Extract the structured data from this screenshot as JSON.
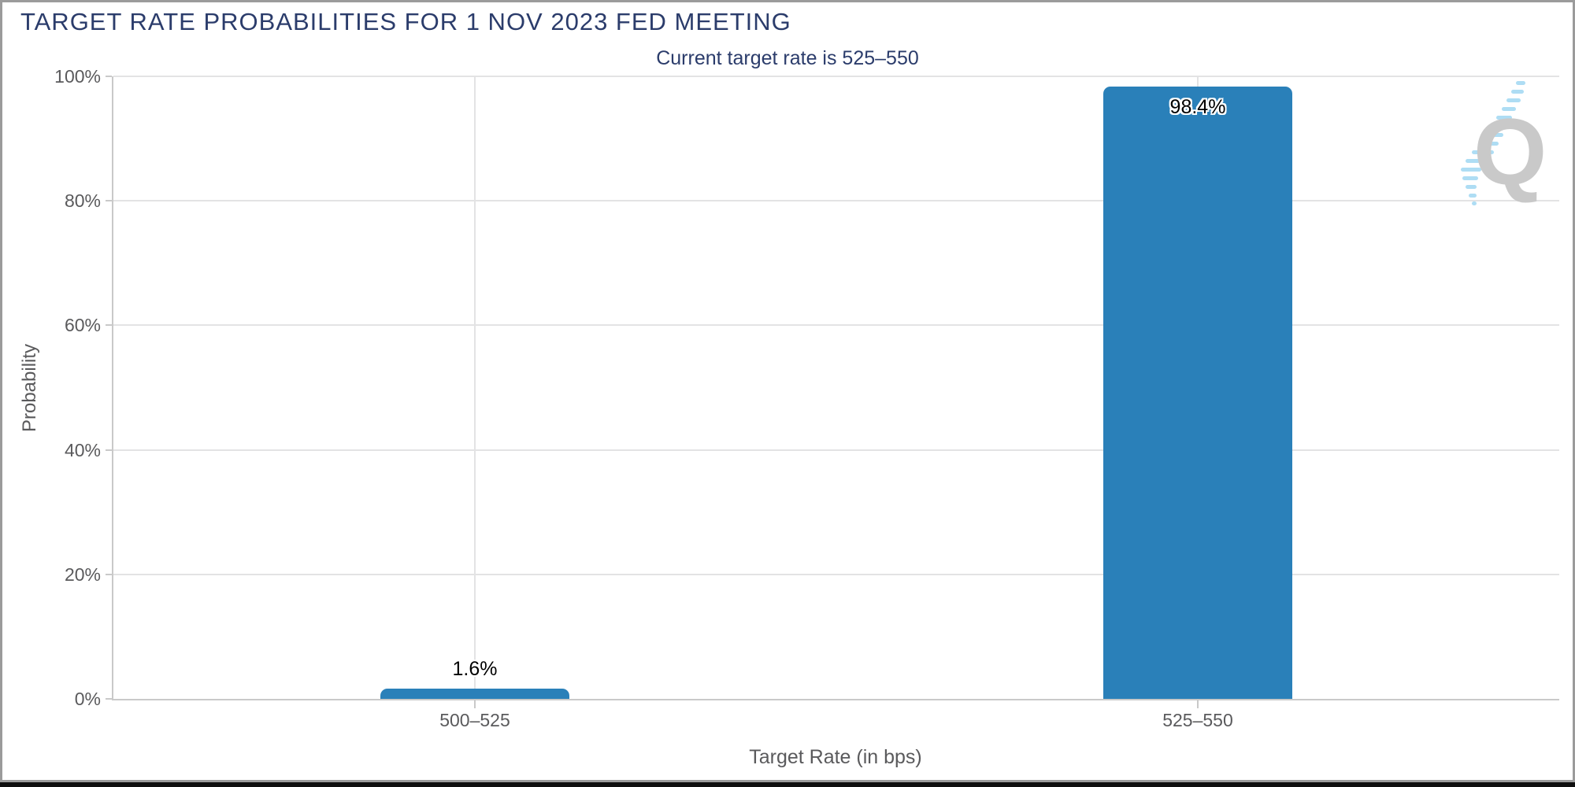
{
  "title": "TARGET RATE PROBABILITIES FOR 1 NOV 2023 FED MEETING",
  "subtitle": "Current target rate is 525–550",
  "watermark_letter": "Q",
  "colors": {
    "bar": "#2a80b9",
    "title_text": "#2b3c6b",
    "axis_text": "#5a5a5c",
    "gridline": "#e3e3e4",
    "axis_line": "#c9c9c9",
    "logo_gray": "#c7c7c7",
    "logo_blue": "#aadcf4"
  },
  "chart_data": {
    "type": "bar",
    "title": "TARGET RATE PROBABILITIES FOR 1 NOV 2023 FED MEETING",
    "subtitle": "Current target rate is 525–550",
    "categories": [
      "500–525",
      "525–550"
    ],
    "values": [
      1.6,
      98.4
    ],
    "data_labels": [
      "1.6%",
      "98.4%"
    ],
    "xlabel": "Target Rate (in bps)",
    "ylabel": "Probability",
    "ylim": [
      0,
      100
    ],
    "yticks": [
      "0%",
      "20%",
      "40%",
      "60%",
      "80%",
      "100%"
    ],
    "grid": true,
    "legend": false,
    "bar_color": "#2a80b9"
  }
}
